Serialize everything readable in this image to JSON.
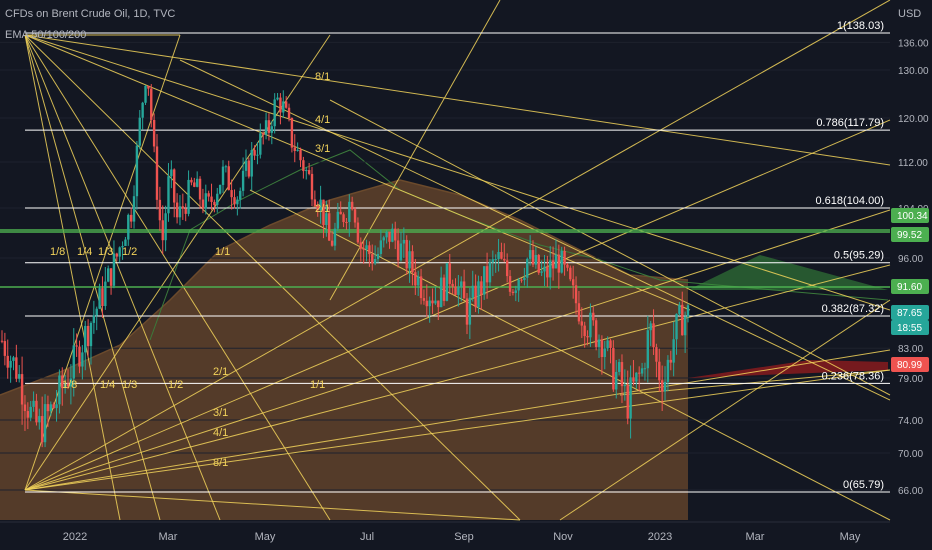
{
  "header": {
    "symbol": "CFDs on Brent Crude Oil, 1D, TVC",
    "indicator": "EMA 50/100/200"
  },
  "axis": {
    "currency": "USD"
  },
  "colors": {
    "bg": "#131722",
    "fan": "#f2d35b",
    "fib": "#ffffff",
    "green": "#4caf50",
    "up": "#26a69a",
    "down": "#ef5350"
  },
  "chart_data": {
    "type": "candlestick",
    "title": "",
    "x_ticks": [
      "2022",
      "Mar",
      "May",
      "Jul",
      "Sep",
      "Nov",
      "2023",
      "Mar",
      "May"
    ],
    "y_ticks": [
      66.0,
      70.0,
      74.0,
      79.0,
      83.0,
      96.0,
      104.0,
      112.0,
      120.0,
      130.0,
      136.0
    ],
    "y_tick_labels": [
      "66.00",
      "70.00",
      "74.00",
      "79.00",
      "83.00",
      "96.00",
      "104.00",
      "112.00",
      "120.00",
      "130.00",
      "136.00"
    ],
    "fib_levels": [
      {
        "ratio": "1",
        "value": 138.03,
        "label": "1(138.03)"
      },
      {
        "ratio": "0.786",
        "value": 117.79,
        "label": "0.786(117.79)"
      },
      {
        "ratio": "0.618",
        "value": 104.0,
        "label": "0.618(104.00)"
      },
      {
        "ratio": "0.5",
        "value": 95.29,
        "label": "0.5(95.29)"
      },
      {
        "ratio": "0.382",
        "value": 87.32,
        "label": "0.382(87.32)"
      },
      {
        "ratio": "0.236",
        "value": 78.36,
        "label": "0.236(78.36)"
      },
      {
        "ratio": "0",
        "value": 65.79,
        "label": "0(65.79)"
      }
    ],
    "fan_labels_upper": [
      "8/1",
      "4/1",
      "3/1",
      "2/1",
      "1/1",
      "1/8",
      "1/4",
      "1/3",
      "1/2"
    ],
    "fan_labels_lower": [
      "1/8",
      "1/4",
      "1/3",
      "1/2",
      "1/1",
      "2/1",
      "3/1",
      "4/1",
      "8/1"
    ],
    "price_tags": [
      {
        "value": "100.34",
        "color": "#4caf50"
      },
      {
        "value": "99.52",
        "color": "#4caf50"
      },
      {
        "value": "91.60",
        "color": "#4caf50"
      },
      {
        "value": "87.65",
        "color": "#26a69a"
      },
      {
        "value": "18:55",
        "color": "#26a69a"
      },
      {
        "value": "80.99",
        "color": "#ef5350"
      }
    ],
    "price_path": [
      [
        0.0,
        84
      ],
      [
        0.02,
        80
      ],
      [
        0.04,
        74
      ],
      [
        0.05,
        73
      ],
      [
        0.07,
        76
      ],
      [
        0.09,
        80
      ],
      [
        0.11,
        85
      ],
      [
        0.13,
        90
      ],
      [
        0.15,
        96
      ],
      [
        0.17,
        104
      ],
      [
        0.18,
        118
      ],
      [
        0.19,
        131
      ],
      [
        0.2,
        112
      ],
      [
        0.21,
        98
      ],
      [
        0.22,
        110
      ],
      [
        0.23,
        102
      ],
      [
        0.25,
        108
      ],
      [
        0.27,
        104
      ],
      [
        0.29,
        110
      ],
      [
        0.31,
        106
      ],
      [
        0.33,
        114
      ],
      [
        0.35,
        118
      ],
      [
        0.36,
        124
      ],
      [
        0.37,
        122
      ],
      [
        0.38,
        116
      ],
      [
        0.4,
        110
      ],
      [
        0.42,
        104
      ],
      [
        0.43,
        98
      ],
      [
        0.44,
        101
      ],
      [
        0.46,
        106
      ],
      [
        0.47,
        98
      ],
      [
        0.49,
        96
      ],
      [
        0.51,
        100
      ],
      [
        0.53,
        96
      ],
      [
        0.55,
        92
      ],
      [
        0.57,
        90
      ],
      [
        0.59,
        94
      ],
      [
        0.61,
        88
      ],
      [
        0.63,
        92
      ],
      [
        0.65,
        96
      ],
      [
        0.67,
        92
      ],
      [
        0.69,
        96
      ],
      [
        0.71,
        93
      ],
      [
        0.73,
        96
      ],
      [
        0.75,
        90
      ],
      [
        0.77,
        86
      ],
      [
        0.79,
        84
      ],
      [
        0.8,
        80
      ],
      [
        0.81,
        79
      ],
      [
        0.82,
        76
      ],
      [
        0.84,
        80
      ],
      [
        0.85,
        86
      ],
      [
        0.86,
        80
      ],
      [
        0.87,
        79
      ],
      [
        0.88,
        84
      ],
      [
        0.89,
        87
      ],
      [
        0.9,
        87.65
      ]
    ]
  }
}
